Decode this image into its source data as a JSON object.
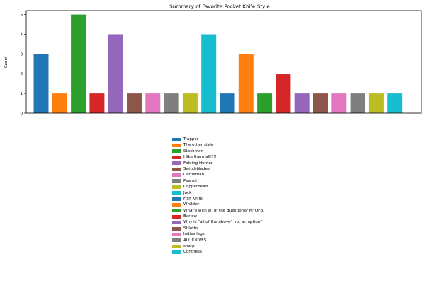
{
  "chart_data": {
    "type": "bar",
    "title": "Summary of Favorite Pocket Knife Style",
    "xlabel": "",
    "ylabel": "Count",
    "ylim": [
      0,
      5.2
    ],
    "yticks": [
      0,
      1,
      2,
      3,
      4,
      5
    ],
    "legend_position": "below",
    "categories": [
      "Trapper",
      "The other style",
      "Stockman",
      "I like them all!!!!",
      "Folding Hunter",
      "Switchblades",
      "Cattleman",
      "Peanut",
      "Copperhead",
      "Jack",
      "Fish Knife",
      "Whittler",
      "What's with all of the questions? MYOFB.",
      "Barlow",
      "Why is \"all of the above\" not an option?",
      "Stiletto",
      "ladies legs",
      "ALL KNIVES",
      "sharp",
      "Congress"
    ],
    "values": [
      3,
      1,
      5,
      1,
      4,
      1,
      1,
      1,
      1,
      4,
      1,
      3,
      1,
      2,
      1,
      1,
      1,
      1,
      1,
      1
    ],
    "colors": [
      "#1f77b4",
      "#ff7f0e",
      "#2ca02c",
      "#d62728",
      "#9467bd",
      "#8c564b",
      "#e377c2",
      "#7f7f7f",
      "#bcbd22",
      "#17becf",
      "#1f77b4",
      "#ff7f0e",
      "#2ca02c",
      "#d62728",
      "#9467bd",
      "#8c564b",
      "#e377c2",
      "#7f7f7f",
      "#bcbd22",
      "#17becf"
    ]
  }
}
